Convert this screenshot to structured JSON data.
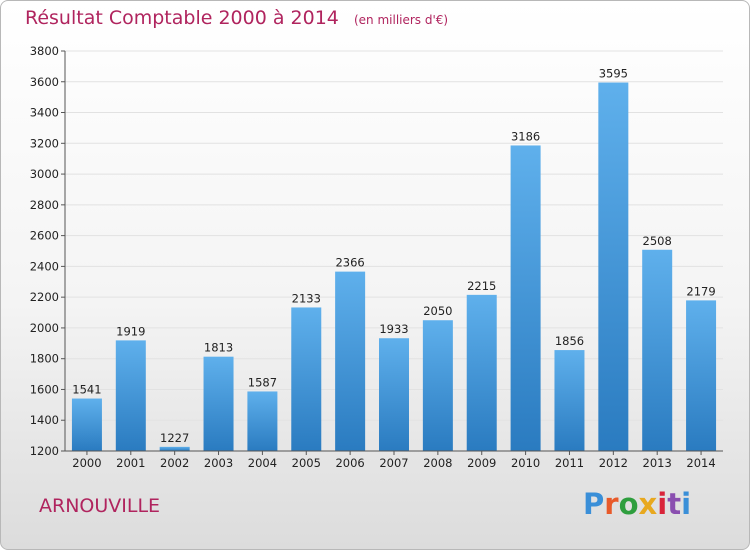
{
  "header": {
    "title": "Résultat Comptable 2000 à 2014",
    "subtitle": "(en milliers d'€)"
  },
  "footer": {
    "city": "ARNOUVILLE",
    "logo_text": "Proxiti",
    "logo_colors": [
      "#3a8fd8",
      "#e85a2a",
      "#2e9e3e",
      "#e8a81e",
      "#d9243a",
      "#8a4fb0",
      "#3a8fd8"
    ]
  },
  "colors": {
    "title": "#b0245e",
    "bar_top": "#5fb0ec",
    "bar_bottom": "#2a7bc0",
    "grid": "#e2e2e2",
    "axis": "#555555",
    "label": "#222222"
  },
  "chart_data": {
    "type": "bar",
    "categories": [
      "2000",
      "2001",
      "2002",
      "2003",
      "2004",
      "2005",
      "2006",
      "2007",
      "2008",
      "2009",
      "2010",
      "2011",
      "2012",
      "2013",
      "2014"
    ],
    "values": [
      1541,
      1919,
      1227,
      1813,
      1587,
      2133,
      2366,
      1933,
      2050,
      2215,
      3186,
      1856,
      3595,
      2508,
      2179
    ],
    "title": "Résultat Comptable 2000 à 2014",
    "subtitle": "(en milliers d'€)",
    "xlabel": "",
    "ylabel": "",
    "ylim": [
      1200,
      3800
    ],
    "yticks": [
      1200,
      1400,
      1600,
      1800,
      2000,
      2200,
      2400,
      2600,
      2800,
      3000,
      3200,
      3400,
      3600,
      3800
    ],
    "grid": true,
    "data_labels": true
  }
}
